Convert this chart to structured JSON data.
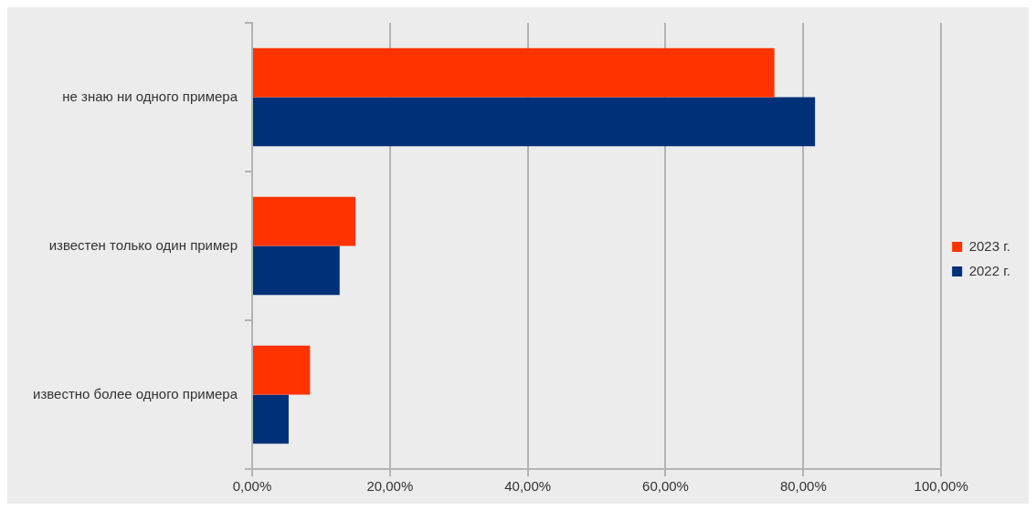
{
  "chart_data": {
    "type": "bar",
    "orientation": "horizontal",
    "categories": [
      "не знаю ни одного примера",
      "известен только один пример",
      "известно более одного примера"
    ],
    "series": [
      {
        "name": "2023 г.",
        "color": "#ff3300",
        "values": [
          75.8,
          15.0,
          8.4
        ]
      },
      {
        "name": "2022 г.",
        "color": "#003078",
        "values": [
          81.7,
          12.7,
          5.3
        ]
      }
    ],
    "xlim": [
      0,
      100
    ],
    "xticks": [
      {
        "value": 0,
        "label": "0,00%"
      },
      {
        "value": 20,
        "label": "20,00%"
      },
      {
        "value": 40,
        "label": "40,00%"
      },
      {
        "value": 60,
        "label": "60,00%"
      },
      {
        "value": 80,
        "label": "80,00%"
      },
      {
        "value": 100,
        "label": "100,00%"
      }
    ],
    "grid": "x",
    "legend": "right"
  }
}
